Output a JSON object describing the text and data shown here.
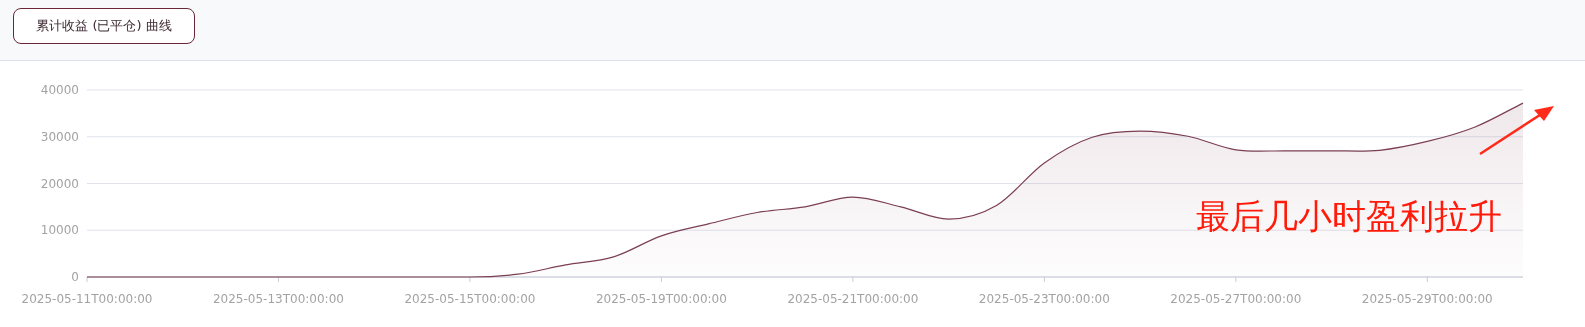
{
  "chart_data": {
    "type": "area",
    "title": "累计收益 (已平仓) 曲线",
    "categories": [
      "2025-05-11T00:00:00",
      null,
      null,
      null,
      "2025-05-13T00:00:00",
      null,
      null,
      null,
      "2025-05-15T00:00:00",
      null,
      null,
      null,
      "2025-05-19T00:00:00",
      null,
      null,
      null,
      "2025-05-21T00:00:00",
      null,
      null,
      null,
      "2025-05-23T00:00:00",
      null,
      null,
      null,
      "2025-05-27T00:00:00",
      null,
      null,
      null,
      "2025-05-29T00:00:00",
      null,
      null
    ],
    "values": [
      0,
      0,
      0,
      0,
      0,
      0,
      0,
      0,
      0,
      600,
      2600,
      4300,
      8800,
      11400,
      13800,
      15000,
      17100,
      15000,
      12400,
      15300,
      24400,
      29900,
      31200,
      30100,
      27200,
      27000,
      27000,
      27100,
      29000,
      32100,
      37200
    ],
    "color": "#7b3f52",
    "ylim": [
      0,
      40000
    ],
    "yticks": [
      0,
      10000,
      20000,
      30000,
      40000
    ],
    "grid": "y",
    "annotations": [
      "最后几小时盈利拉升"
    ]
  }
}
